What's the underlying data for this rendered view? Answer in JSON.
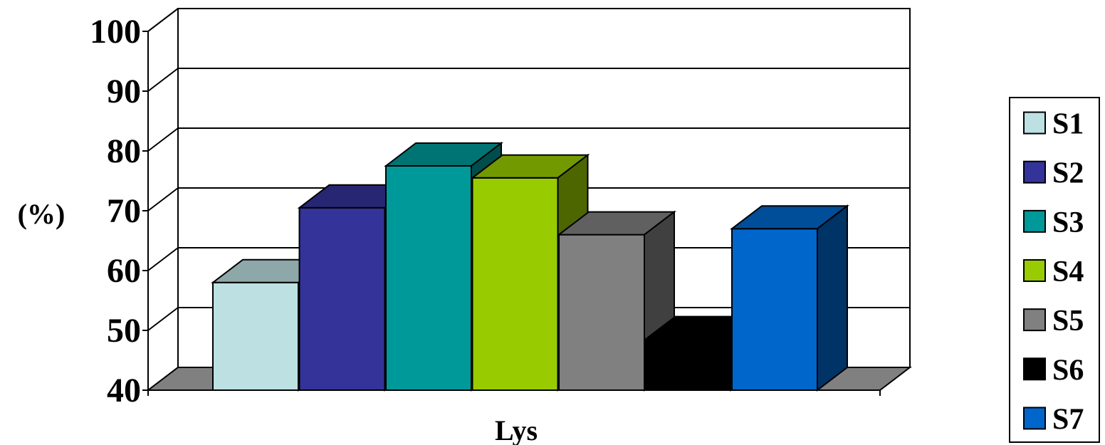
{
  "chart_data": {
    "type": "bar",
    "title": "",
    "ylabel": "(%)",
    "xlabel": "Lys",
    "categories": [
      "Lys"
    ],
    "ylim": [
      40,
      100
    ],
    "yticks": [
      40,
      50,
      60,
      70,
      80,
      90,
      100
    ],
    "grid": true,
    "legend_position": "right",
    "series": [
      {
        "name": "S1",
        "values": [
          58
        ],
        "color": "#bde0e3"
      },
      {
        "name": "S2",
        "values": [
          70.5
        ],
        "color": "#333399"
      },
      {
        "name": "S3",
        "values": [
          77.5
        ],
        "color": "#009999"
      },
      {
        "name": "S4",
        "values": [
          75.5
        ],
        "color": "#99cc00"
      },
      {
        "name": "S5",
        "values": [
          66
        ],
        "color": "#808080"
      },
      {
        "name": "S6",
        "values": [
          48.5
        ],
        "color": "#000000"
      },
      {
        "name": "S7",
        "values": [
          67
        ],
        "color": "#0066cc"
      }
    ]
  }
}
